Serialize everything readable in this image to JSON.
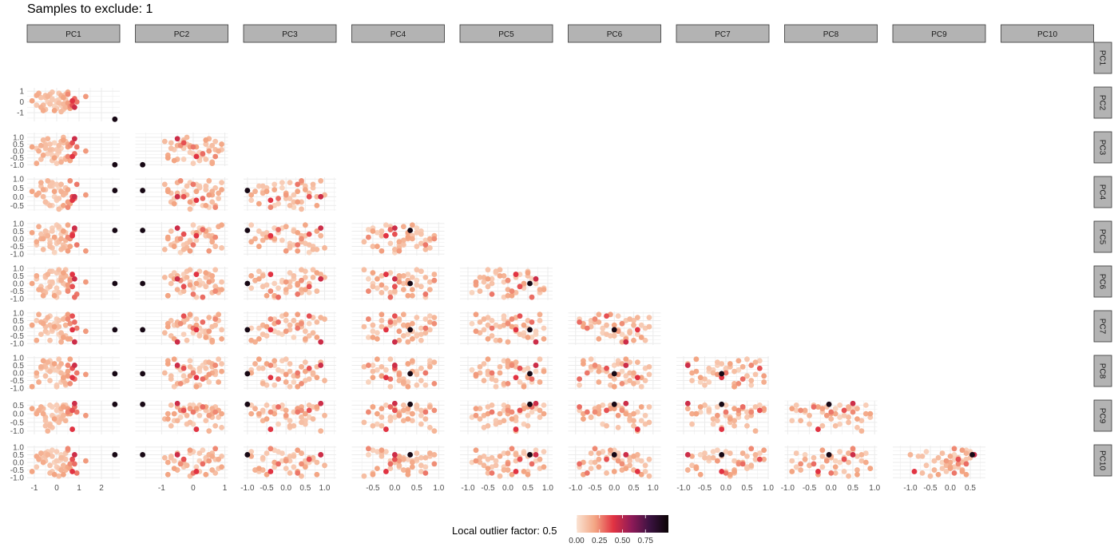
{
  "title": "Samples to exclude: 1",
  "chart_data": {
    "type": "scatter",
    "layout": "pairs-matrix-lower-triangle",
    "variables": [
      "PC1",
      "PC2",
      "PC3",
      "PC4",
      "PC5",
      "PC6",
      "PC7",
      "PC8",
      "PC9",
      "PC10"
    ],
    "limits": {
      "PC1": [
        -1.32,
        2.82
      ],
      "PC2": [
        -1.83,
        1.1
      ],
      "PC3": [
        -1.1,
        1.3
      ],
      "PC4": [
        -0.98,
        1.13
      ],
      "PC5": [
        -1.2,
        1.12
      ],
      "PC6": [
        -1.19,
        1.2
      ],
      "PC7": [
        -1.17,
        1.02
      ],
      "PC8": [
        -1.07,
        1.06
      ],
      "PC9": [
        -1.44,
        0.88
      ],
      "PC10": [
        -1.15,
        1.15
      ]
    },
    "y_limits": {
      "PC2": [
        -1.8,
        1.3
      ],
      "PC3": [
        -1.1,
        1.35
      ],
      "PC4": [
        -0.8,
        1.1
      ],
      "PC5": [
        -1.1,
        1.1
      ],
      "PC6": [
        -1.1,
        1.1
      ],
      "PC7": [
        -1.1,
        1.1
      ],
      "PC8": [
        -1.1,
        1.1
      ],
      "PC9": [
        -1.2,
        0.75
      ],
      "PC10": [
        -1.1,
        1.1
      ]
    },
    "x_ticks": {
      "PC1": [
        "-1",
        "0",
        "1",
        "2"
      ],
      "PC2": [
        "-1",
        "0",
        "1"
      ],
      "PC3": [
        "-1.0",
        "-0.5",
        "0.0",
        "0.5",
        "1.0"
      ],
      "PC4": [
        "-0.5",
        "0.0",
        "0.5",
        "1.0"
      ],
      "PC5": [
        "-1.0",
        "-0.5",
        "0.0",
        "0.5",
        "1.0"
      ],
      "PC6": [
        "-1.0",
        "-0.5",
        "0.0",
        "0.5",
        "1.0"
      ],
      "PC7": [
        "-1.0",
        "-0.5",
        "0.0",
        "0.5",
        "1.0"
      ],
      "PC8": [
        "-1.0",
        "-0.5",
        "0.0",
        "0.5",
        "1.0"
      ],
      "PC9": [
        "-1.0",
        "-0.5",
        "0.0",
        "0.5"
      ]
    },
    "y_ticks": {
      "PC2": [
        "1",
        "0",
        "-1"
      ],
      "PC3": [
        "1.0",
        "0.5",
        "0.0",
        "-0.5",
        "-1.0"
      ],
      "PC4": [
        "1.0",
        "0.5",
        "0.0",
        "-0.5"
      ],
      "PC5": [
        "1.0",
        "0.5",
        "0.0",
        "-0.5",
        "-1.0"
      ],
      "PC6": [
        "1.0",
        "0.5",
        "0.0",
        "-0.5",
        "-1.0"
      ],
      "PC7": [
        "1.0",
        "0.5",
        "0.0",
        "-0.5",
        "-1.0"
      ],
      "PC8": [
        "1.0",
        "0.5",
        "0.0",
        "-0.5",
        "-1.0"
      ],
      "PC9": [
        "0.5",
        "0.0",
        "-0.5",
        "-1.0"
      ],
      "PC10": [
        "1.0",
        "0.5",
        "0.0",
        "-0.5",
        "-1.0"
      ]
    },
    "sample_columns": [
      "PC1",
      "PC2",
      "PC3",
      "PC4",
      "PC5",
      "PC6",
      "PC7",
      "PC8",
      "PC9",
      "PC10",
      "lof"
    ],
    "samples": [
      [
        -0.9,
        -0.3,
        0.2,
        0.1,
        -0.4,
        0.3,
        0.5,
        -0.2,
        0.1,
        -0.3,
        0.08
      ],
      [
        -0.5,
        0.6,
        0.4,
        -0.3,
        0.2,
        -0.6,
        0.1,
        0.4,
        -0.2,
        0.6,
        0.12
      ],
      [
        0.1,
        0.2,
        -0.1,
        0.5,
        0.7,
        0.2,
        -0.4,
        0.1,
        0.3,
        0.1,
        0.05
      ],
      [
        0.4,
        -0.5,
        -0.6,
        0.2,
        -0.1,
        0.5,
        0.2,
        -0.7,
        -0.4,
        -0.5,
        0.15
      ],
      [
        0.7,
        -0.3,
        0.6,
        0.0,
        0.3,
        -0.2,
        0.8,
        0.3,
        0.2,
        0.2,
        0.35
      ],
      [
        -0.2,
        0.9,
        0.1,
        0.8,
        -0.6,
        0.1,
        -0.1,
        0.6,
        -0.8,
        0.4,
        0.1
      ],
      [
        0.3,
        0.4,
        0.8,
        -0.5,
        0.5,
        0.7,
        -0.6,
        -0.3,
        0.4,
        -0.8,
        0.2
      ],
      [
        -0.6,
        -0.8,
        -0.3,
        0.4,
        0.0,
        -0.8,
        0.3,
        0.8,
        0.0,
        0.0,
        0.18
      ],
      [
        1.3,
        0.5,
        0.0,
        0.1,
        -0.8,
        0.1,
        -0.2,
        -0.1,
        -0.1,
        0.1,
        0.22
      ],
      [
        0.0,
        0.0,
        -0.9,
        -0.2,
        0.9,
        -0.3,
        0.0,
        0.2,
        0.5,
        0.7,
        0.07
      ],
      [
        -0.3,
        -0.2,
        0.5,
        0.6,
        -0.3,
        0.8,
        -0.8,
        -0.5,
        -0.6,
        -0.2,
        0.1
      ],
      [
        0.5,
        0.7,
        -0.4,
        -0.6,
        0.1,
        -0.5,
        0.6,
        0.5,
        0.1,
        0.9,
        0.25
      ],
      [
        -1.1,
        0.1,
        0.3,
        0.3,
        0.4,
        0.0,
        0.2,
        -0.9,
        0.3,
        -0.6,
        0.2
      ],
      [
        0.2,
        -0.9,
        0.7,
        0.7,
        -0.7,
        0.4,
        -0.3,
        0.0,
        -0.3,
        0.3,
        0.13
      ],
      [
        0.8,
        0.3,
        -0.2,
        -0.1,
        0.6,
        -0.9,
        0.4,
        -0.4,
        0.4,
        -0.1,
        0.3
      ],
      [
        -0.4,
        0.5,
        0.9,
        0.9,
        0.2,
        0.6,
        0.7,
        0.7,
        -1.0,
        0.5,
        0.15
      ],
      [
        0.6,
        -0.6,
        -0.7,
        -0.4,
        -0.5,
        0.3,
        -0.7,
        0.9,
        0.0,
        -0.4,
        0.2
      ],
      [
        -0.8,
        0.8,
        0.0,
        0.2,
        0.8,
        -0.4,
        0.9,
        -0.6,
        0.2,
        0.2,
        0.17
      ],
      [
        0.1,
        -0.1,
        0.4,
        -0.7,
        -0.2,
        0.9,
        0.1,
        0.4,
        -0.5,
        -0.9,
        0.12
      ],
      [
        0.4,
        0.2,
        -0.5,
        0.5,
        0.4,
        -0.1,
        -0.5,
        -0.8,
        0.5,
        0.6,
        0.09
      ],
      [
        -0.1,
        -0.4,
        0.6,
        0.0,
        -0.9,
        -0.6,
        0.3,
        0.2,
        -0.2,
        0.0,
        0.05
      ],
      [
        0.2,
        0.6,
        -0.8,
        0.3,
        0.0,
        0.2,
        -0.9,
        0.6,
        0.3,
        -0.5,
        0.16
      ],
      [
        -0.5,
        -0.7,
        0.2,
        -0.3,
        0.5,
        0.5,
        0.5,
        -0.2,
        -0.7,
        0.4,
        0.11
      ],
      [
        0.9,
        0.0,
        0.3,
        0.7,
        -0.4,
        -0.7,
        0.0,
        0.0,
        0.1,
        -0.7,
        0.28
      ],
      [
        -0.2,
        0.3,
        -0.3,
        -0.5,
        0.7,
        0.0,
        -0.2,
        0.5,
        0.4,
        0.8,
        0.06
      ],
      [
        0.3,
        -0.2,
        1.0,
        0.1,
        -0.6,
        0.4,
        0.6,
        -0.5,
        -0.1,
        -0.2,
        0.14
      ],
      [
        -0.7,
        0.4,
        -0.6,
        0.6,
        0.3,
        -0.2,
        -0.4,
        0.3,
        0.2,
        0.3,
        0.1
      ],
      [
        0.0,
        -0.6,
        0.1,
        -0.1,
        -0.3,
        0.7,
        0.2,
        -0.9,
        -0.4,
        0.1,
        0.08
      ],
      [
        0.5,
        0.9,
        0.5,
        0.4,
        0.9,
        -0.4,
        -0.7,
        0.1,
        0.0,
        -0.3,
        0.19
      ],
      [
        -0.3,
        -0.1,
        -0.1,
        0.8,
        -0.1,
        0.1,
        0.8,
        0.8,
        0.5,
        0.6,
        0.07
      ],
      [
        0.7,
        0.1,
        -0.4,
        -0.2,
        0.2,
        0.6,
        -0.1,
        -0.3,
        -0.9,
        -0.6,
        0.4
      ],
      [
        -0.6,
        -0.3,
        0.8,
        0.0,
        -0.7,
        -0.5,
        0.4,
        0.4,
        0.3,
        0.0,
        0.13
      ],
      [
        0.2,
        0.5,
        0.2,
        -0.6,
        0.6,
        0.3,
        -0.6,
        -0.6,
        0.1,
        0.5,
        0.05
      ],
      [
        -0.1,
        -0.8,
        -0.5,
        0.3,
        0.1,
        -0.8,
        0.1,
        0.6,
        -0.3,
        -0.8,
        0.2
      ],
      [
        0.4,
        0.7,
        0.7,
        0.5,
        -0.5,
        0.9,
        0.7,
        -0.1,
        0.4,
        0.2,
        0.1
      ],
      [
        -0.4,
        0.0,
        -0.2,
        -0.4,
        0.4,
        -0.3,
        -0.3,
        0.2,
        -0.6,
        0.7,
        0.06
      ],
      [
        0.6,
        -0.4,
        0.4,
        0.9,
        0.0,
        0.2,
        0.3,
        -0.7,
        0.2,
        -0.1,
        0.24
      ],
      [
        -0.9,
        0.6,
        -0.9,
        0.1,
        -0.2,
        0.5,
        -0.8,
        0.0,
        0.0,
        0.4,
        0.18
      ],
      [
        0.1,
        0.8,
        0.0,
        -0.1,
        0.8,
        -0.6,
        0.5,
        0.9,
        -0.2,
        -0.4,
        0.09
      ],
      [
        0.3,
        -0.7,
        0.6,
        0.2,
        -0.4,
        0.0,
        -0.5,
        -0.4,
        0.5,
        0.3,
        0.11
      ],
      [
        -0.2,
        0.2,
        -0.7,
        0.6,
        0.5,
        0.8,
        0.0,
        0.3,
        -0.1,
        -0.6,
        0.08
      ],
      [
        0.5,
        -0.1,
        0.3,
        -0.3,
        -0.8,
        -0.1,
        0.9,
        -0.2,
        0.3,
        0.8,
        0.21
      ],
      [
        -0.5,
        0.4,
        0.5,
        0.4,
        0.2,
        0.4,
        -0.2,
        0.7,
        -0.4,
        0.1,
        0.1
      ],
      [
        0.0,
        0.1,
        -0.3,
        0.7,
        -0.1,
        -0.9,
        0.6,
        -0.8,
        0.2,
        -0.3,
        0.07
      ],
      [
        0.8,
        -0.5,
        0.9,
        0.0,
        0.7,
        0.3,
        -0.9,
        0.5,
        0.6,
        0.5,
        0.45
      ],
      [
        -0.3,
        0.7,
        0.1,
        -0.5,
        -0.5,
        -0.2,
        0.2,
        0.1,
        -0.7,
        -0.7,
        0.12
      ],
      [
        0.2,
        -0.3,
        -0.6,
        0.3,
        0.3,
        0.6,
        -0.4,
        -0.6,
        0.1,
        0.2,
        0.06
      ],
      [
        -0.7,
        -0.5,
        0.4,
        0.8,
        0.0,
        -0.4,
        0.4,
        0.4,
        0.4,
        0.6,
        0.16
      ],
      [
        2.6,
        -1.6,
        -1.0,
        0.35,
        0.55,
        0.0,
        -0.1,
        -0.05,
        0.55,
        0.5,
        0.95
      ]
    ],
    "color_scale": {
      "title": "Local outlier factor: 0.5",
      "ticks": [
        "0.00",
        "0.25",
        "0.50",
        "0.75"
      ],
      "tick_values": [
        0,
        0.25,
        0.5,
        0.75
      ],
      "range": [
        0,
        1
      ],
      "colors": [
        "#FAE3D3",
        "#F3A583",
        "#E13342",
        "#8E1A58",
        "#3A1240",
        "#0B0405"
      ]
    },
    "legend_position": "bottom",
    "grid": true
  }
}
